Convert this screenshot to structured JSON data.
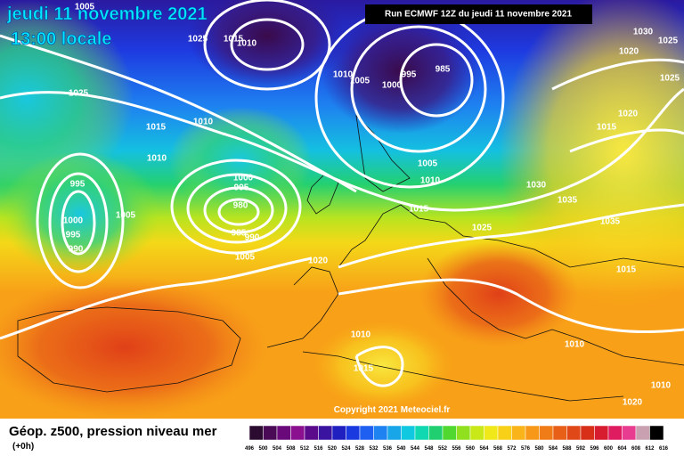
{
  "header": {
    "date": "jeudi 11 novembre 2021",
    "time": "13:00 locale",
    "run": "Run ECMWF 12Z du jeudi 11 novembre 2021"
  },
  "copyright": "Copyright 2021 Meteociel.fr",
  "footer": {
    "title": "Géop. z500, pression niveau mer",
    "step": "(+0h)"
  },
  "legend": {
    "labels": [
      "496",
      "500",
      "504",
      "508",
      "512",
      "516",
      "520",
      "524",
      "528",
      "532",
      "536",
      "540",
      "544",
      "548",
      "552",
      "556",
      "560",
      "564",
      "568",
      "572",
      "576",
      "580",
      "584",
      "588",
      "592",
      "596",
      "600",
      "604",
      "608",
      "612",
      "616"
    ],
    "colors": [
      "#2b0b30",
      "#4a0a55",
      "#6a0a7a",
      "#8a1090",
      "#5a0a8a",
      "#3a14a0",
      "#2020c0",
      "#1a3ae0",
      "#1e5ef0",
      "#1e82f0",
      "#18a6e8",
      "#10c8e0",
      "#10d8b0",
      "#20d070",
      "#50d830",
      "#90e020",
      "#c8e818",
      "#f0e818",
      "#f8d018",
      "#f8b418",
      "#f89818",
      "#f07c18",
      "#e86018",
      "#e04818",
      "#d83018",
      "#d81c30",
      "#e01c60",
      "#e83c90",
      "#c8a0b0",
      "#000000"
    ]
  },
  "isobar_labels": [
    "1005",
    "1025",
    "1015",
    "1010",
    "1025",
    "1015",
    "1010",
    "1010",
    "995",
    "1000",
    "995",
    "990",
    "1005",
    "1000",
    "995",
    "980",
    "985",
    "990",
    "1005",
    "1020",
    "1010",
    "1005",
    "1000",
    "995",
    "985",
    "1005",
    "1010",
    "1015",
    "1025",
    "1030",
    "1035",
    "1035",
    "1030",
    "1025",
    "1020",
    "1015",
    "1020",
    "1015",
    "1025",
    "1010",
    "1015",
    "1010",
    "1010",
    "1020"
  ]
}
